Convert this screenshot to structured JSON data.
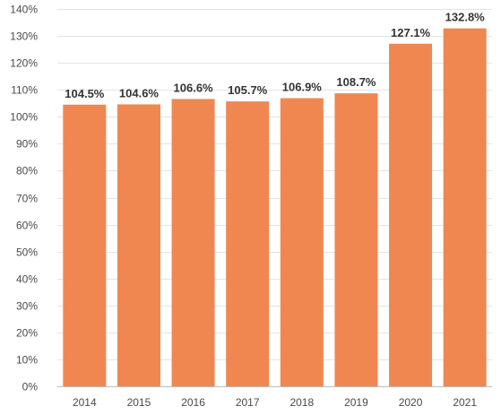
{
  "chart_data": {
    "type": "bar",
    "title": "",
    "xlabel": "",
    "ylabel": "",
    "categories": [
      "2014",
      "2015",
      "2016",
      "2017",
      "2018",
      "2019",
      "2020",
      "2021"
    ],
    "values": [
      104.5,
      104.6,
      106.6,
      105.7,
      106.9,
      108.7,
      127.1,
      132.8
    ],
    "data_labels": [
      "104.5%",
      "104.6%",
      "106.6%",
      "105.7%",
      "106.9%",
      "108.7%",
      "127.1%",
      "132.8%"
    ],
    "ylim": [
      0,
      140
    ],
    "y_ticks": [
      0,
      10,
      20,
      30,
      40,
      50,
      60,
      70,
      80,
      90,
      100,
      110,
      120,
      130,
      140
    ],
    "y_tick_labels": [
      "0%",
      "10%",
      "20%",
      "30%",
      "40%",
      "50%",
      "60%",
      "70%",
      "80%",
      "90%",
      "100%",
      "110%",
      "120%",
      "130%",
      "140%"
    ],
    "grid": "horizontal",
    "legend": "none",
    "colors": {
      "bar": "#F08751",
      "grid": "#E4E4E4",
      "axis": "#BDBDBD",
      "tick_text": "#4A4A4A",
      "label_text": "#333333"
    }
  }
}
